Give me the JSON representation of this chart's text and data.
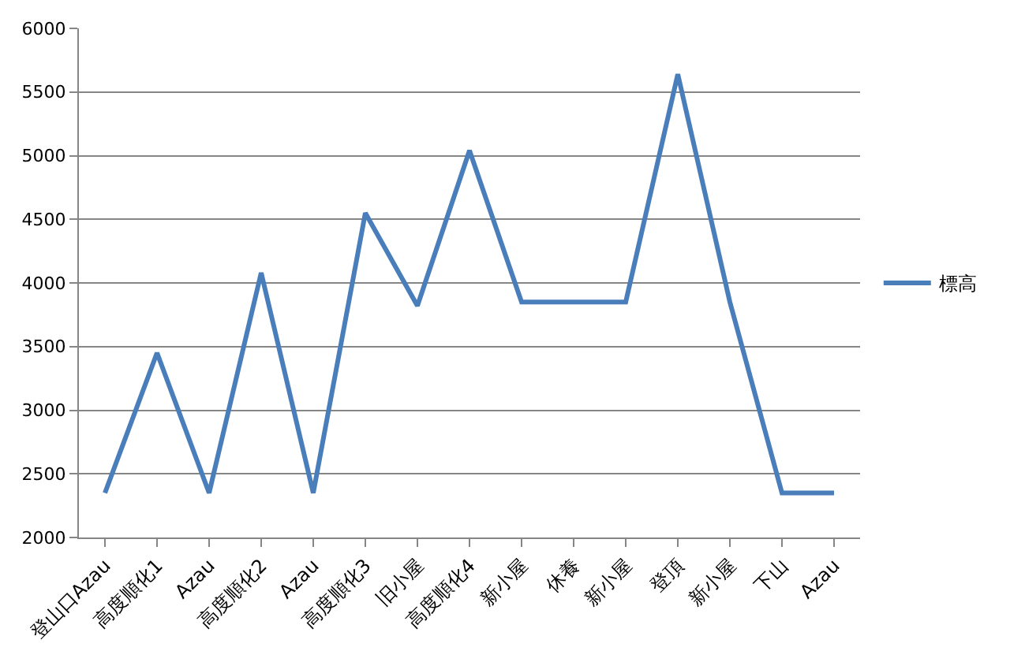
{
  "chart_data": {
    "type": "line",
    "categories": [
      "登山口Azau",
      "高度順化1",
      "Azau",
      "高度順化2",
      "Azau",
      "高度順化3",
      "旧小屋",
      "高度順化4",
      "新小屋",
      "休養",
      "新小屋",
      "登頂",
      "新小屋",
      "下山",
      "Azau"
    ],
    "series": [
      {
        "name": "標高",
        "color": "#4a7ebb",
        "values": [
          2350,
          3450,
          2350,
          4080,
          2350,
          4550,
          3820,
          5040,
          3850,
          3850,
          3850,
          5640,
          3850,
          2350,
          2350
        ]
      }
    ],
    "ylim": [
      2000,
      6000
    ],
    "yticks": [
      2000,
      2500,
      3000,
      3500,
      4000,
      4500,
      5000,
      5500,
      6000
    ],
    "grid": "y",
    "legend": "right",
    "marker": "none",
    "line_style": "solid"
  }
}
